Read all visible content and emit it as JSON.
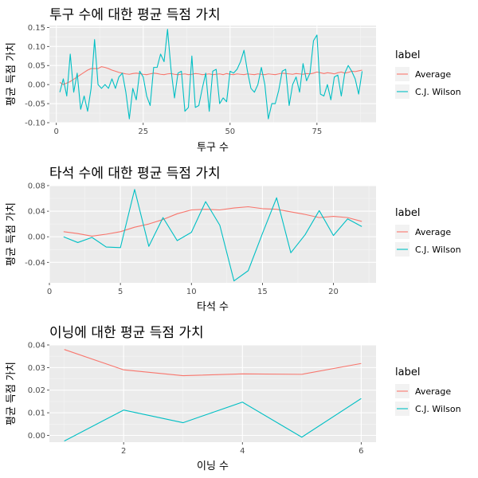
{
  "legend": {
    "title": "label",
    "items": [
      {
        "label": "Average",
        "color": "#F8766D"
      },
      {
        "label": "C.J. Wilson",
        "color": "#00BFC4"
      }
    ]
  },
  "chart_data": [
    {
      "type": "line",
      "title": "투구 수에 대한 평균 득점 가치",
      "xlabel": "투구 수",
      "ylabel": "평균 득점 가치",
      "xlim": [
        -2,
        92
      ],
      "ylim": [
        -0.1,
        0.155
      ],
      "xticks": [
        0,
        25,
        50,
        75
      ],
      "yticks": [
        -0.1,
        -0.05,
        0.0,
        0.05,
        0.1,
        0.15
      ],
      "ytick_labels": [
        "-0.10",
        "-0.05",
        "0.00",
        "0.05",
        "0.10",
        "0.15"
      ],
      "grid": true,
      "legend_position": "right",
      "series": [
        {
          "name": "Average",
          "color": "#F8766D",
          "x": [
            1,
            2,
            3,
            4,
            5,
            6,
            7,
            8,
            9,
            10,
            11,
            12,
            13,
            14,
            15,
            16,
            17,
            18,
            19,
            20,
            21,
            22,
            23,
            24,
            25,
            26,
            27,
            28,
            29,
            30,
            31,
            32,
            33,
            34,
            35,
            36,
            37,
            38,
            39,
            40,
            41,
            42,
            43,
            44,
            45,
            46,
            47,
            48,
            49,
            50,
            51,
            52,
            53,
            54,
            55,
            56,
            57,
            58,
            59,
            60,
            61,
            62,
            63,
            64,
            65,
            66,
            67,
            68,
            69,
            70,
            71,
            72,
            73,
            74,
            75,
            76,
            77,
            78,
            79,
            80,
            81,
            82,
            83,
            84,
            85,
            86,
            87,
            88
          ],
          "y": [
            0.006,
            0.0,
            0.004,
            0.008,
            0.014,
            0.02,
            0.026,
            0.032,
            0.038,
            0.042,
            0.042,
            0.042,
            0.047,
            0.045,
            0.042,
            0.038,
            0.035,
            0.032,
            0.03,
            0.028,
            0.027,
            0.029,
            0.03,
            0.029,
            0.027,
            0.026,
            0.028,
            0.03,
            0.029,
            0.027,
            0.026,
            0.028,
            0.029,
            0.027,
            0.026,
            0.027,
            0.028,
            0.026,
            0.027,
            0.029,
            0.028,
            0.026,
            0.027,
            0.028,
            0.026,
            0.027,
            0.028,
            0.026,
            0.029,
            0.027,
            0.026,
            0.028,
            0.027,
            0.026,
            0.028,
            0.027,
            0.026,
            0.028,
            0.027,
            0.026,
            0.028,
            0.027,
            0.026,
            0.028,
            0.03,
            0.029,
            0.028,
            0.027,
            0.029,
            0.028,
            0.027,
            0.029,
            0.028,
            0.03,
            0.033,
            0.031,
            0.029,
            0.031,
            0.03,
            0.028,
            0.031,
            0.033,
            0.03,
            0.032,
            0.035,
            0.034,
            0.036,
            0.038
          ]
        },
        {
          "name": "C.J. Wilson",
          "color": "#00BFC4",
          "x": [
            1,
            2,
            3,
            4,
            5,
            6,
            7,
            8,
            9,
            10,
            11,
            12,
            13,
            14,
            15,
            16,
            17,
            18,
            19,
            20,
            21,
            22,
            23,
            24,
            25,
            26,
            27,
            28,
            29,
            30,
            31,
            32,
            33,
            34,
            35,
            36,
            37,
            38,
            39,
            40,
            41,
            42,
            43,
            44,
            45,
            46,
            47,
            48,
            49,
            50,
            51,
            52,
            53,
            54,
            55,
            56,
            57,
            58,
            59,
            60,
            61,
            62,
            63,
            64,
            65,
            66,
            67,
            68,
            69,
            70,
            71,
            72,
            73,
            74,
            75,
            76,
            77,
            78,
            79,
            80,
            81,
            82,
            83,
            84,
            85,
            86,
            87,
            88
          ],
          "y": [
            -0.02,
            0.015,
            -0.03,
            0.08,
            -0.02,
            0.03,
            -0.065,
            -0.03,
            -0.07,
            -0.01,
            0.118,
            0.0,
            -0.01,
            0.0,
            -0.01,
            0.015,
            -0.01,
            0.02,
            0.03,
            -0.02,
            -0.09,
            -0.01,
            -0.04,
            0.035,
            0.02,
            -0.03,
            -0.055,
            0.045,
            0.045,
            0.08,
            0.06,
            0.145,
            0.04,
            -0.035,
            0.03,
            0.035,
            -0.07,
            -0.06,
            0.075,
            -0.06,
            -0.055,
            -0.01,
            0.03,
            -0.07,
            0.035,
            0.04,
            -0.05,
            -0.035,
            -0.045,
            0.035,
            0.03,
            0.04,
            0.06,
            0.09,
            0.035,
            -0.01,
            -0.02,
            0.0,
            0.045,
            0.0,
            -0.09,
            -0.05,
            -0.05,
            -0.015,
            0.035,
            0.04,
            -0.055,
            0.0,
            0.02,
            -0.02,
            0.055,
            0.01,
            0.03,
            0.115,
            0.13,
            -0.025,
            -0.03,
            0.0,
            -0.04,
            0.02,
            0.025,
            -0.03,
            0.03,
            0.05,
            0.035,
            0.015,
            -0.025,
            0.035
          ]
        }
      ]
    },
    {
      "type": "line",
      "title": "타석 수에 대한 평균 득점 가치",
      "xlabel": "타석 수",
      "ylabel": "평균 득점 가치",
      "xlim": [
        0,
        23
      ],
      "ylim": [
        -0.072,
        0.08
      ],
      "xticks": [
        0,
        5,
        10,
        15,
        20
      ],
      "yticks": [
        -0.04,
        0.0,
        0.04,
        0.08
      ],
      "ytick_labels": [
        "-0.04",
        "0.00",
        "0.04",
        "0.08"
      ],
      "grid": true,
      "legend_position": "right",
      "series": [
        {
          "name": "Average",
          "color": "#F8766D",
          "x": [
            1,
            2,
            3,
            4,
            5,
            6,
            7,
            8,
            9,
            10,
            11,
            12,
            13,
            14,
            15,
            16,
            17,
            18,
            19,
            20,
            21,
            22
          ],
          "y": [
            0.008,
            0.005,
            0.001,
            0.004,
            0.008,
            0.015,
            0.02,
            0.027,
            0.036,
            0.042,
            0.043,
            0.042,
            0.045,
            0.047,
            0.044,
            0.043,
            0.039,
            0.035,
            0.03,
            0.032,
            0.03,
            0.024
          ]
        },
        {
          "name": "C.J. Wilson",
          "color": "#00BFC4",
          "x": [
            1,
            2,
            3,
            4,
            5,
            6,
            7,
            8,
            9,
            10,
            11,
            12,
            13,
            14,
            15,
            16,
            17,
            18,
            19,
            20,
            21,
            22
          ],
          "y": [
            0.0,
            -0.009,
            -0.001,
            -0.016,
            -0.017,
            0.074,
            -0.015,
            0.03,
            -0.006,
            0.007,
            0.055,
            0.018,
            -0.069,
            -0.053,
            0.005,
            0.061,
            -0.025,
            0.003,
            0.041,
            0.002,
            0.028,
            0.016
          ]
        }
      ]
    },
    {
      "type": "line",
      "title": "이닝에 대한 평균 득점 가치",
      "xlabel": "이닝 수",
      "ylabel": "평균 득점 가치",
      "xlim": [
        0.75,
        6.25
      ],
      "ylim": [
        -0.003,
        0.04
      ],
      "xticks": [
        2,
        4,
        6
      ],
      "yticks": [
        0.0,
        0.01,
        0.02,
        0.03,
        0.04
      ],
      "ytick_labels": [
        "0.00",
        "0.01",
        "0.02",
        "0.03",
        "0.04"
      ],
      "grid": true,
      "legend_position": "right",
      "series": [
        {
          "name": "Average",
          "color": "#F8766D",
          "x": [
            1,
            2,
            3,
            4,
            5,
            6
          ],
          "y": [
            0.038,
            0.029,
            0.0264,
            0.0272,
            0.027,
            0.0318
          ]
        },
        {
          "name": "C.J. Wilson",
          "color": "#00BFC4",
          "x": [
            1,
            2,
            3,
            4,
            5,
            6
          ],
          "y": [
            -0.0025,
            0.0112,
            0.0056,
            0.0147,
            -0.0008,
            0.0163
          ]
        }
      ]
    }
  ]
}
